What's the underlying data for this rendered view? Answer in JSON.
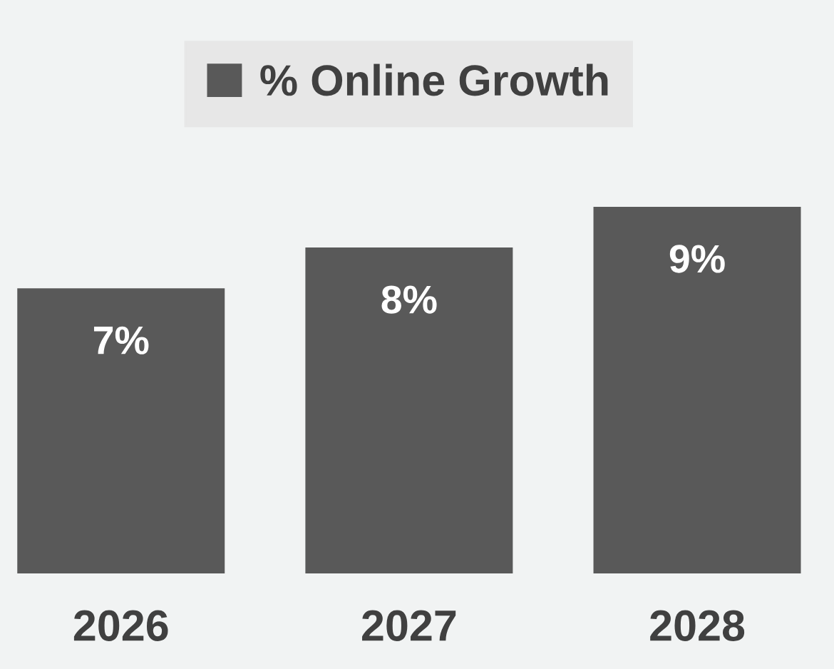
{
  "chart_data": {
    "type": "bar",
    "categories": [
      "2026",
      "2027",
      "2028"
    ],
    "series": [
      {
        "name": "% Online Growth",
        "color": "#595959",
        "values": [
          7,
          8,
          9
        ],
        "value_labels": [
          "7%",
          "8%",
          "9%"
        ]
      }
    ],
    "legend": "top"
  }
}
